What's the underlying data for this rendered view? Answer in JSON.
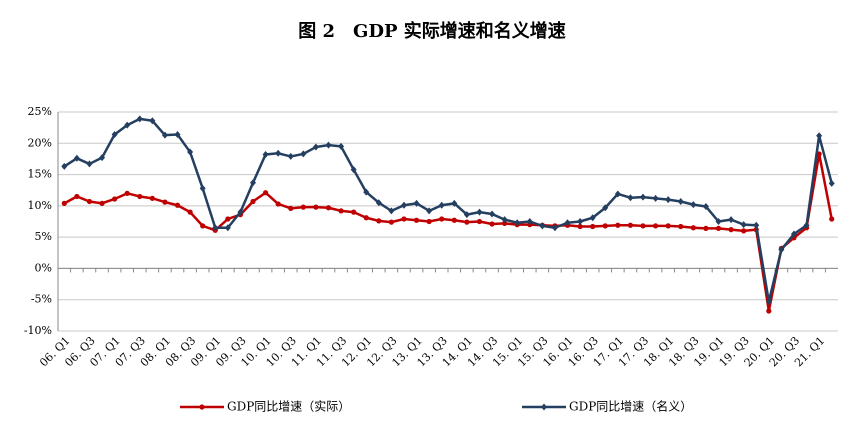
{
  "chart_data": {
    "type": "line",
    "title": "图 2　GDP 实际增速和名义增速",
    "categories": [
      "06. Q1",
      null,
      "06. Q3",
      null,
      "07. Q1",
      null,
      "07. Q3",
      null,
      "08. Q1",
      null,
      "08. Q3",
      null,
      "09. Q1",
      null,
      "09. Q3",
      null,
      "10. Q1",
      null,
      "10. Q3",
      null,
      "11. Q1",
      null,
      "11. Q3",
      null,
      "12. Q1",
      null,
      "12. Q3",
      null,
      "13. Q1",
      null,
      "13. Q3",
      null,
      "14. Q1",
      null,
      "14. Q3",
      null,
      "15. Q1",
      null,
      "15. Q3",
      null,
      "16. Q1",
      null,
      "16. Q3",
      null,
      "17. Q1",
      null,
      "17. Q3",
      null,
      "18. Q1",
      null,
      "18. Q3",
      null,
      "19. Q1",
      null,
      "19. Q3",
      null,
      "20. Q1",
      null,
      "20. Q3",
      null,
      "21. Q1",
      null
    ],
    "series": [
      {
        "name": "GDP同比增速（实际）",
        "color": "#c00000",
        "marker": "circle",
        "values": [
          10.4,
          11.5,
          10.7,
          10.4,
          11.1,
          12.0,
          11.5,
          11.2,
          10.6,
          10.1,
          9.0,
          6.8,
          6.1,
          7.9,
          8.6,
          10.7,
          12.1,
          10.3,
          9.6,
          9.8,
          9.8,
          9.7,
          9.2,
          9.0,
          8.1,
          7.6,
          7.4,
          7.9,
          7.7,
          7.5,
          7.9,
          7.7,
          7.4,
          7.5,
          7.1,
          7.2,
          7.0,
          7.0,
          6.9,
          6.8,
          6.9,
          6.7,
          6.7,
          6.8,
          6.9,
          6.9,
          6.8,
          6.8,
          6.8,
          6.7,
          6.5,
          6.4,
          6.4,
          6.2,
          6.0,
          6.2,
          -6.8,
          3.2,
          4.9,
          6.5,
          18.3,
          7.9
        ]
      },
      {
        "name": "GDP同比增速（名义）",
        "color": "#243f60",
        "marker": "diamond",
        "values": [
          16.3,
          17.6,
          16.7,
          17.7,
          21.4,
          22.9,
          23.9,
          23.6,
          21.3,
          21.4,
          18.6,
          12.8,
          6.5,
          6.5,
          9.0,
          13.7,
          18.2,
          18.4,
          17.9,
          18.3,
          19.4,
          19.7,
          19.5,
          15.8,
          12.2,
          10.5,
          9.2,
          10.1,
          10.4,
          9.2,
          10.1,
          10.4,
          8.6,
          9.0,
          8.7,
          7.8,
          7.3,
          7.5,
          6.8,
          6.5,
          7.3,
          7.5,
          8.1,
          9.7,
          11.9,
          11.3,
          11.4,
          11.2,
          11.0,
          10.7,
          10.2,
          9.9,
          7.5,
          7.8,
          7.0,
          6.9,
          -5.3,
          3.0,
          5.5,
          6.9,
          21.2,
          13.6
        ]
      }
    ],
    "ylim": [
      -10,
      25
    ],
    "yticks": [
      {
        "value": -10,
        "label": "-10%"
      },
      {
        "value": -5,
        "label": "-5%"
      },
      {
        "value": 0,
        "label": "0%"
      },
      {
        "value": 5,
        "label": "5%"
      },
      {
        "value": 10,
        "label": "10%"
      },
      {
        "value": 15,
        "label": "15%"
      },
      {
        "value": 20,
        "label": "20%"
      },
      {
        "value": 25,
        "label": "25%"
      }
    ],
    "grid": true,
    "legend": "bottom"
  }
}
